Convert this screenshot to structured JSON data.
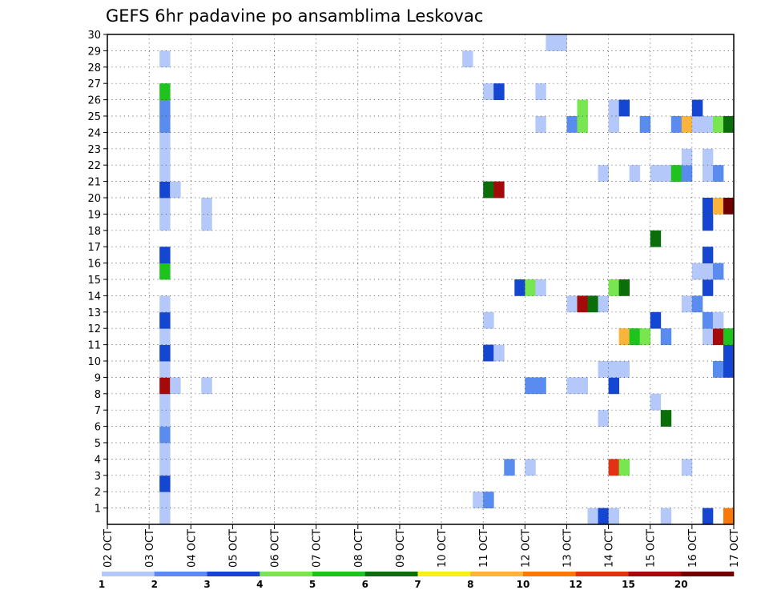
{
  "chart_data": {
    "type": "heatmap",
    "title": "GEFS 6hr padavine po ansamblima Leskovac",
    "xlabel": "",
    "ylabel": "",
    "x_ticks": [
      "02 OCT",
      "03 OCT",
      "04 OCT",
      "05 OCT",
      "06 OCT",
      "07 OCT",
      "08 OCT",
      "09 OCT",
      "10 OCT",
      "11 OCT",
      "12 OCT",
      "13 OCT",
      "14 OCT",
      "15 OCT",
      "16 OCT",
      "17 OCT"
    ],
    "y_ticks": [
      "1",
      "2",
      "3",
      "4",
      "5",
      "6",
      "7",
      "8",
      "9",
      "10",
      "11",
      "12",
      "13",
      "14",
      "15",
      "16",
      "17",
      "18",
      "19",
      "20",
      "21",
      "22",
      "23",
      "24",
      "25",
      "26",
      "27",
      "28",
      "29",
      "30"
    ],
    "x_range_days": [
      0,
      15
    ],
    "y_range": [
      0,
      30
    ],
    "grid": true,
    "colorbar": {
      "colors": [
        "#b4c8fa",
        "#5a8cf0",
        "#1446d2",
        "#78e650",
        "#1ec31e",
        "#0a6e0a",
        "#faf014",
        "#fab43c",
        "#fa780a",
        "#e13214",
        "#a50a0a",
        "#6e0000"
      ],
      "labels": [
        {
          "text": "1",
          "at": 0
        },
        {
          "text": "2",
          "at": 1
        },
        {
          "text": "3",
          "at": 2
        },
        {
          "text": "4",
          "at": 3
        },
        {
          "text": "5",
          "at": 4
        },
        {
          "text": "6",
          "at": 5
        },
        {
          "text": "7",
          "at": 6
        },
        {
          "text": "8",
          "at": 7
        },
        {
          "text": "10",
          "at": 8
        },
        {
          "text": "12",
          "at": 9
        },
        {
          "text": "15",
          "at": 10
        },
        {
          "text": "20",
          "at": 11
        }
      ]
    },
    "cells": [
      {
        "x": 1.25,
        "y": 0,
        "c": 0
      },
      {
        "x": 1.25,
        "y": 1,
        "c": 0
      },
      {
        "x": 1.25,
        "y": 2,
        "c": 2
      },
      {
        "x": 1.25,
        "y": 3,
        "c": 0
      },
      {
        "x": 1.25,
        "y": 4,
        "c": 0
      },
      {
        "x": 1.25,
        "y": 5,
        "c": 1
      },
      {
        "x": 1.25,
        "y": 6,
        "c": 0
      },
      {
        "x": 1.25,
        "y": 7,
        "c": 0
      },
      {
        "x": 1.25,
        "y": 8,
        "c": 10
      },
      {
        "x": 1.25,
        "y": 9,
        "c": 0
      },
      {
        "x": 1.25,
        "y": 10,
        "c": 2
      },
      {
        "x": 1.25,
        "y": 11,
        "c": 0
      },
      {
        "x": 1.25,
        "y": 12,
        "c": 2
      },
      {
        "x": 1.25,
        "y": 13,
        "c": 0
      },
      {
        "x": 1.25,
        "y": 15,
        "c": 4
      },
      {
        "x": 1.25,
        "y": 16,
        "c": 2
      },
      {
        "x": 1.25,
        "y": 18,
        "c": 0
      },
      {
        "x": 1.25,
        "y": 19,
        "c": 0
      },
      {
        "x": 1.25,
        "y": 20,
        "c": 2
      },
      {
        "x": 1.25,
        "y": 21,
        "c": 0
      },
      {
        "x": 1.25,
        "y": 22,
        "c": 0
      },
      {
        "x": 1.25,
        "y": 23,
        "c": 0
      },
      {
        "x": 1.25,
        "y": 24,
        "c": 1
      },
      {
        "x": 1.25,
        "y": 25,
        "c": 1
      },
      {
        "x": 1.25,
        "y": 26,
        "c": 4
      },
      {
        "x": 1.25,
        "y": 28,
        "c": 0
      },
      {
        "x": 1.5,
        "y": 8,
        "c": 0
      },
      {
        "x": 1.5,
        "y": 20,
        "c": 0
      },
      {
        "x": 2.25,
        "y": 8,
        "c": 0
      },
      {
        "x": 2.25,
        "y": 18,
        "c": 0
      },
      {
        "x": 2.25,
        "y": 19,
        "c": 0
      },
      {
        "x": 8.5,
        "y": 28,
        "c": 0
      },
      {
        "x": 8.75,
        "y": 1,
        "c": 0
      },
      {
        "x": 9.0,
        "y": 1,
        "c": 1
      },
      {
        "x": 9.0,
        "y": 10,
        "c": 2
      },
      {
        "x": 9.0,
        "y": 12,
        "c": 0
      },
      {
        "x": 9.0,
        "y": 20,
        "c": 5
      },
      {
        "x": 9.0,
        "y": 26,
        "c": 0
      },
      {
        "x": 9.25,
        "y": 10,
        "c": 0
      },
      {
        "x": 9.25,
        "y": 20,
        "c": 10
      },
      {
        "x": 9.25,
        "y": 26,
        "c": 2
      },
      {
        "x": 9.5,
        "y": 3,
        "c": 1
      },
      {
        "x": 9.75,
        "y": 14,
        "c": 2
      },
      {
        "x": 10.0,
        "y": 3,
        "c": 0
      },
      {
        "x": 10.0,
        "y": 8,
        "c": 1
      },
      {
        "x": 10.0,
        "y": 14,
        "c": 3
      },
      {
        "x": 10.25,
        "y": 8,
        "c": 1
      },
      {
        "x": 10.25,
        "y": 14,
        "c": 0
      },
      {
        "x": 10.25,
        "y": 24,
        "c": 0
      },
      {
        "x": 10.25,
        "y": 26,
        "c": 0
      },
      {
        "x": 10.5,
        "y": 29,
        "c": 0
      },
      {
        "x": 10.75,
        "y": 29,
        "c": 0
      },
      {
        "x": 11.0,
        "y": 8,
        "c": 0
      },
      {
        "x": 11.0,
        "y": 13,
        "c": 0
      },
      {
        "x": 11.0,
        "y": 24,
        "c": 1
      },
      {
        "x": 11.25,
        "y": 8,
        "c": 0
      },
      {
        "x": 11.25,
        "y": 13,
        "c": 10
      },
      {
        "x": 11.25,
        "y": 24,
        "c": 3
      },
      {
        "x": 11.25,
        "y": 25,
        "c": 3
      },
      {
        "x": 11.5,
        "y": 0,
        "c": 0
      },
      {
        "x": 11.5,
        "y": 13,
        "c": 5
      },
      {
        "x": 11.75,
        "y": 0,
        "c": 2
      },
      {
        "x": 11.75,
        "y": 6,
        "c": 0
      },
      {
        "x": 11.75,
        "y": 9,
        "c": 0
      },
      {
        "x": 11.75,
        "y": 13,
        "c": 0
      },
      {
        "x": 11.75,
        "y": 21,
        "c": 0
      },
      {
        "x": 12.0,
        "y": 0,
        "c": 0
      },
      {
        "x": 12.0,
        "y": 3,
        "c": 9
      },
      {
        "x": 12.0,
        "y": 8,
        "c": 2
      },
      {
        "x": 12.0,
        "y": 9,
        "c": 0
      },
      {
        "x": 12.0,
        "y": 14,
        "c": 3
      },
      {
        "x": 12.0,
        "y": 24,
        "c": 0
      },
      {
        "x": 12.0,
        "y": 25,
        "c": 0
      },
      {
        "x": 12.25,
        "y": 3,
        "c": 3
      },
      {
        "x": 12.25,
        "y": 9,
        "c": 0
      },
      {
        "x": 12.25,
        "y": 11,
        "c": 7
      },
      {
        "x": 12.25,
        "y": 14,
        "c": 5
      },
      {
        "x": 12.25,
        "y": 25,
        "c": 2
      },
      {
        "x": 12.5,
        "y": 11,
        "c": 4
      },
      {
        "x": 12.5,
        "y": 21,
        "c": 0
      },
      {
        "x": 12.75,
        "y": 11,
        "c": 3
      },
      {
        "x": 12.75,
        "y": 24,
        "c": 1
      },
      {
        "x": 13.0,
        "y": 7,
        "c": 0
      },
      {
        "x": 13.0,
        "y": 12,
        "c": 2
      },
      {
        "x": 13.0,
        "y": 17,
        "c": 5
      },
      {
        "x": 13.0,
        "y": 21,
        "c": 0
      },
      {
        "x": 13.25,
        "y": 0,
        "c": 0
      },
      {
        "x": 13.25,
        "y": 6,
        "c": 5
      },
      {
        "x": 13.25,
        "y": 11,
        "c": 1
      },
      {
        "x": 13.25,
        "y": 21,
        "c": 0
      },
      {
        "x": 13.5,
        "y": 21,
        "c": 4
      },
      {
        "x": 13.5,
        "y": 24,
        "c": 1
      },
      {
        "x": 13.75,
        "y": 3,
        "c": 0
      },
      {
        "x": 13.75,
        "y": 13,
        "c": 0
      },
      {
        "x": 13.75,
        "y": 21,
        "c": 1
      },
      {
        "x": 13.75,
        "y": 22,
        "c": 0
      },
      {
        "x": 13.75,
        "y": 24,
        "c": 7
      },
      {
        "x": 14.0,
        "y": 13,
        "c": 1
      },
      {
        "x": 14.0,
        "y": 24,
        "c": 0
      },
      {
        "x": 14.0,
        "y": 25,
        "c": 2
      },
      {
        "x": 14.0,
        "y": 15,
        "c": 0
      },
      {
        "x": 14.25,
        "y": 0,
        "c": 2
      },
      {
        "x": 14.25,
        "y": 11,
        "c": 0
      },
      {
        "x": 14.25,
        "y": 12,
        "c": 1
      },
      {
        "x": 14.25,
        "y": 14,
        "c": 2
      },
      {
        "x": 14.25,
        "y": 15,
        "c": 0
      },
      {
        "x": 14.25,
        "y": 16,
        "c": 2
      },
      {
        "x": 14.25,
        "y": 18,
        "c": 2
      },
      {
        "x": 14.25,
        "y": 19,
        "c": 2
      },
      {
        "x": 14.25,
        "y": 21,
        "c": 0
      },
      {
        "x": 14.25,
        "y": 22,
        "c": 0
      },
      {
        "x": 14.25,
        "y": 24,
        "c": 0
      },
      {
        "x": 14.5,
        "y": 9,
        "c": 1
      },
      {
        "x": 14.5,
        "y": 11,
        "c": 10
      },
      {
        "x": 14.5,
        "y": 12,
        "c": 0
      },
      {
        "x": 14.5,
        "y": 15,
        "c": 1
      },
      {
        "x": 14.5,
        "y": 19,
        "c": 7
      },
      {
        "x": 14.5,
        "y": 21,
        "c": 1
      },
      {
        "x": 14.5,
        "y": 24,
        "c": 3
      },
      {
        "x": 14.75,
        "y": 0,
        "c": 8
      },
      {
        "x": 14.75,
        "y": 9,
        "c": 2
      },
      {
        "x": 14.75,
        "y": 10,
        "c": 2
      },
      {
        "x": 14.75,
        "y": 11,
        "c": 4
      },
      {
        "x": 14.75,
        "y": 19,
        "c": 11
      },
      {
        "x": 14.75,
        "y": 24,
        "c": 5
      }
    ]
  }
}
